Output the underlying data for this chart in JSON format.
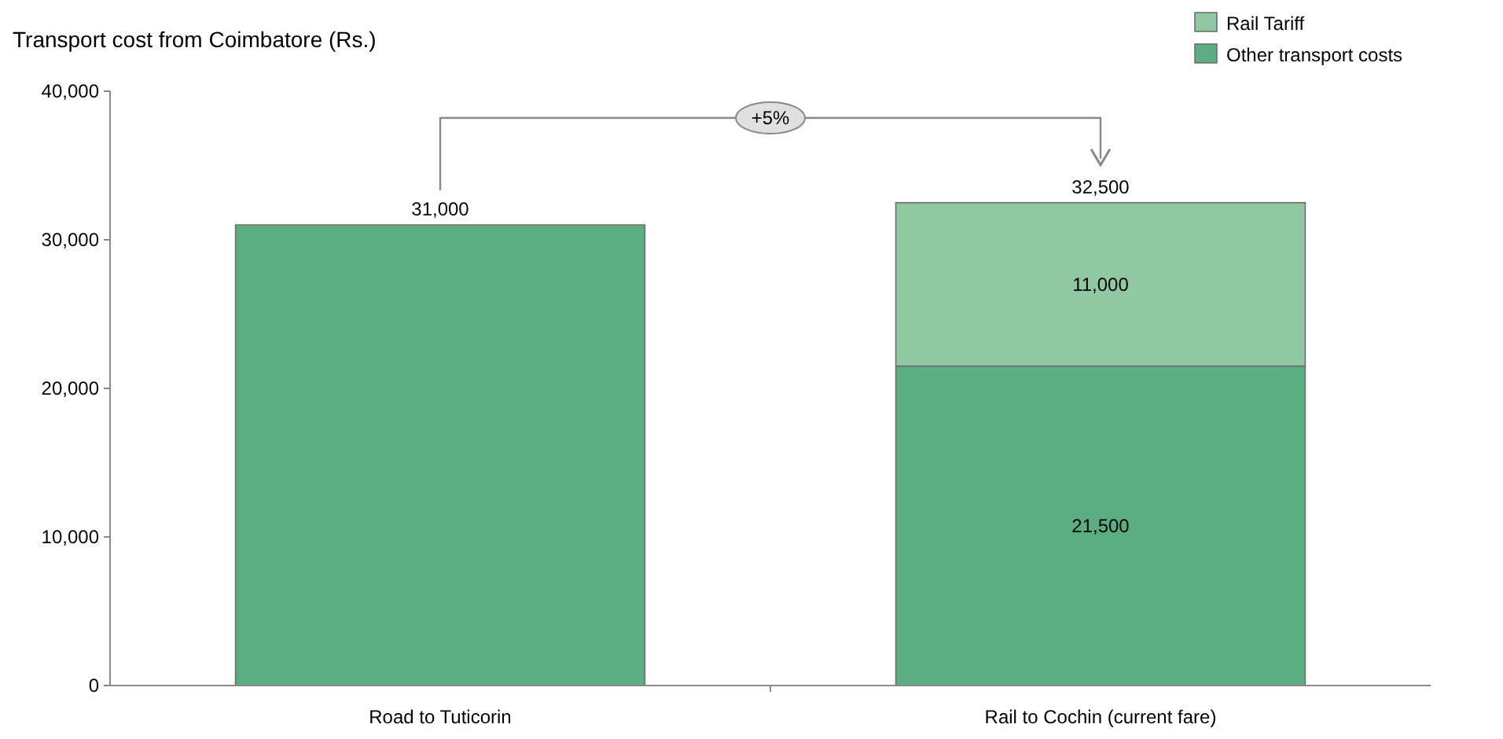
{
  "chart_data": {
    "type": "bar",
    "title": "Transport cost from Coimbatore (Rs.)",
    "stacked": true,
    "categories": [
      "Road to Tuticorin",
      "Rail to Cochin (current fare)"
    ],
    "series": [
      {
        "name": "Other transport costs",
        "color": "#5aae82",
        "values": [
          31000,
          21500
        ],
        "value_labels": [
          null,
          "21,500"
        ]
      },
      {
        "name": "Rail Tariff",
        "color": "#8fc8a1",
        "values": [
          null,
          11000
        ],
        "value_labels": [
          null,
          "11,000"
        ]
      }
    ],
    "totals": [
      "31,000",
      "32,500"
    ],
    "ylim": [
      0,
      40000
    ],
    "yticks": [
      {
        "value": 0,
        "label": "0"
      },
      {
        "value": 10000,
        "label": "10,000"
      },
      {
        "value": 20000,
        "label": "20,000"
      },
      {
        "value": 30000,
        "label": "30,000"
      },
      {
        "value": 40000,
        "label": "40,000"
      }
    ],
    "grid": false,
    "legend": "top right",
    "annotations": [
      "+5%"
    ]
  }
}
